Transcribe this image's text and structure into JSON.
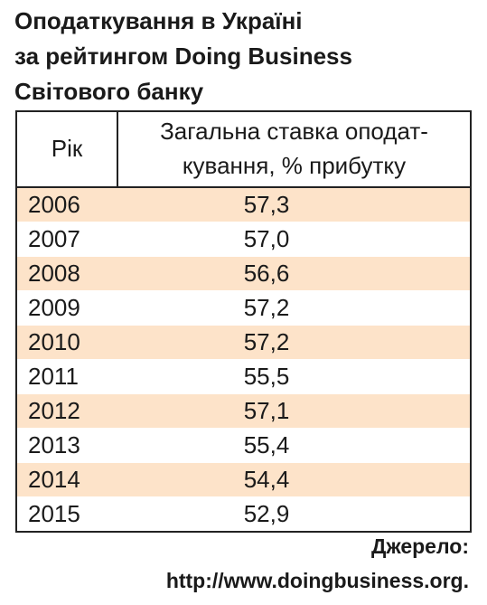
{
  "header": {
    "title": [
      "Оподаткування в Україні",
      "за рейтингом Doing Business",
      "Світового банку"
    ]
  },
  "table": {
    "columns": [
      "Рік",
      [
        "Загальна ставка оподат-",
        "кування, % прибутку"
      ]
    ],
    "rows": [
      [
        "2006",
        "57,3"
      ],
      [
        "2007",
        "57,0"
      ],
      [
        "2008",
        "56,6"
      ],
      [
        "2009",
        "57,2"
      ],
      [
        "2010",
        "57,2"
      ],
      [
        "2011",
        "55,5"
      ],
      [
        "2012",
        "57,1"
      ],
      [
        "2013",
        "55,4"
      ],
      [
        "2014",
        "54,4"
      ],
      [
        "2015",
        "52,9"
      ]
    ]
  },
  "source": [
    "Джерело:",
    "http://www.doingbusiness.org."
  ]
}
